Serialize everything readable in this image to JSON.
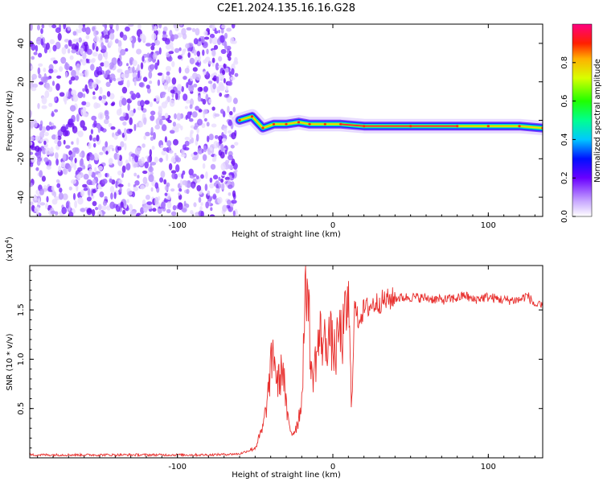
{
  "title": "C2E1.2024.135.16.16.G28",
  "chart_data": [
    {
      "type": "heatmap",
      "xlabel": "Height of straight line (km)",
      "ylabel": "Frequency (Hz)",
      "xlim": [
        -195,
        135
      ],
      "ylim": [
        -50,
        50
      ],
      "xticks": [
        -100,
        0,
        100
      ],
      "yticks": [
        -40,
        -20,
        0,
        20,
        40
      ],
      "colorbar": {
        "label": "Normalized spectral amplitude",
        "range": [
          0,
          1
        ],
        "ticks": [
          0.0,
          0.2,
          0.4,
          0.6,
          0.8
        ]
      },
      "ridge": [
        {
          "x": -60,
          "y": 0
        },
        {
          "x": -52,
          "y": 2
        },
        {
          "x": -45,
          "y": -4
        },
        {
          "x": -38,
          "y": -2
        },
        {
          "x": -30,
          "y": -2
        },
        {
          "x": -22,
          "y": -1
        },
        {
          "x": -15,
          "y": -2
        },
        {
          "x": -5,
          "y": -2
        },
        {
          "x": 5,
          "y": -2
        },
        {
          "x": 20,
          "y": -3
        },
        {
          "x": 50,
          "y": -3
        },
        {
          "x": 80,
          "y": -3
        },
        {
          "x": 100,
          "y": -3
        },
        {
          "x": 120,
          "y": -3
        },
        {
          "x": 135,
          "y": -4
        }
      ]
    },
    {
      "type": "line",
      "xlabel": "Height of straight line (km)",
      "ylabel": "SNR (10 * v/v)",
      "multiplier": "(x10",
      "multiplier_exp": "4",
      "multiplier_close": ")",
      "xlim": [
        -195,
        135
      ],
      "ylim": [
        0,
        1.95
      ],
      "xticks": [
        -100,
        0,
        100
      ],
      "yticks": [
        0.5,
        1.0,
        1.5
      ],
      "color": "#e8312f",
      "x": [
        -195,
        -160,
        -120,
        -80,
        -60,
        -50,
        -45,
        -42,
        -40,
        -38,
        -36,
        -34,
        -32,
        -30,
        -28,
        -26,
        -24,
        -22,
        -20,
        -18,
        -16,
        -14,
        -12,
        -10,
        -8,
        -6,
        -4,
        -2,
        0,
        2,
        4,
        6,
        8,
        10,
        12,
        14,
        16,
        18,
        20,
        25,
        30,
        40,
        50,
        60,
        70,
        80,
        85,
        90,
        95,
        100,
        110,
        120,
        125,
        130,
        135
      ],
      "y": [
        0.03,
        0.03,
        0.03,
        0.03,
        0.04,
        0.1,
        0.3,
        0.6,
        0.9,
        1.1,
        0.75,
        0.8,
        0.95,
        0.5,
        0.3,
        0.25,
        0.3,
        0.4,
        0.6,
        1.55,
        1.8,
        0.8,
        0.9,
        1.1,
        1.25,
        1.15,
        1.2,
        1.25,
        1.1,
        1.05,
        1.3,
        1.2,
        1.4,
        1.6,
        0.5,
        1.55,
        1.4,
        1.45,
        1.5,
        1.55,
        1.58,
        1.62,
        1.63,
        1.62,
        1.6,
        1.62,
        1.65,
        1.6,
        1.62,
        1.63,
        1.6,
        1.6,
        1.65,
        1.55,
        1.53
      ]
    }
  ]
}
